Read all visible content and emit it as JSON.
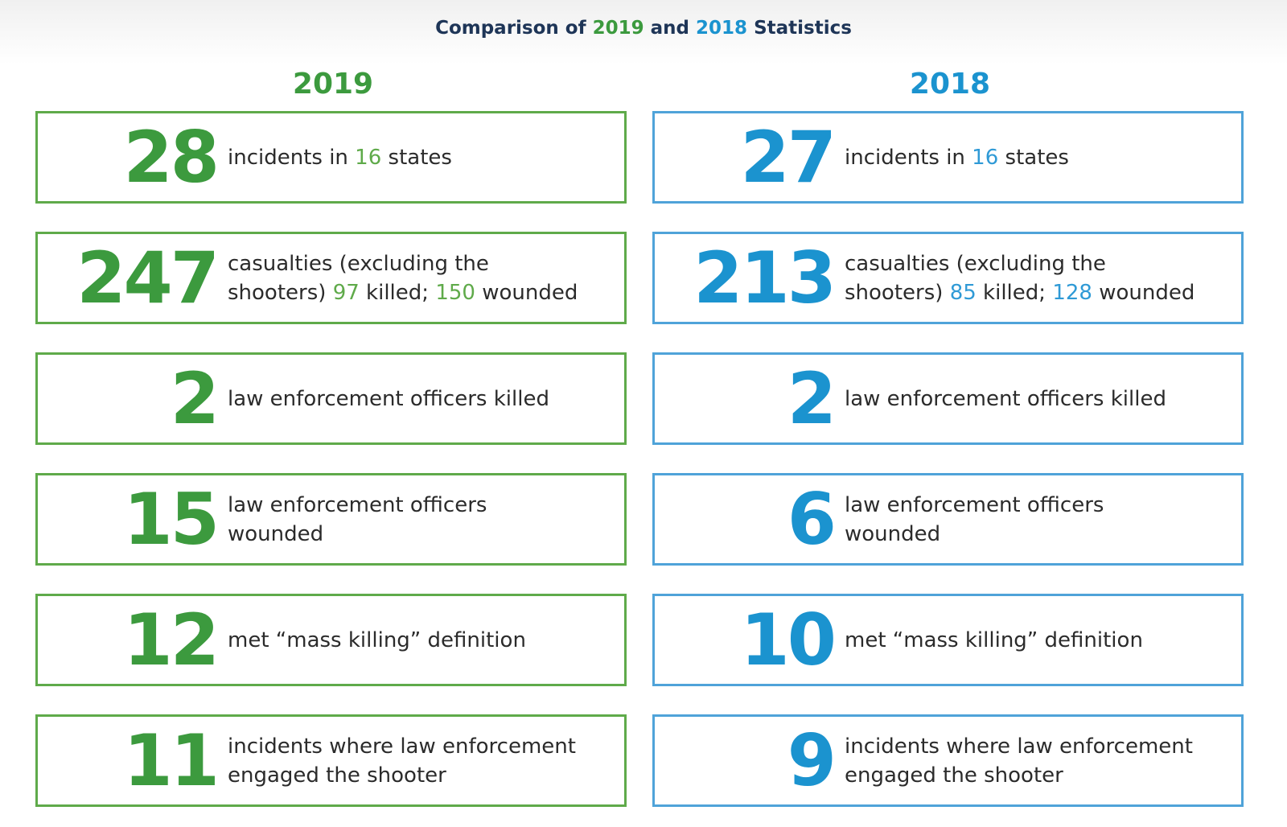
{
  "title": {
    "prefix": "Comparison of",
    "year_a": "2019",
    "mid": "and",
    "year_b": "2018",
    "suffix": "Statistics"
  },
  "columns": [
    {
      "year": "2019",
      "color": "#3c9a3e",
      "rows": [
        {
          "number": "28",
          "parts": [
            "incidents in ",
            "16",
            " states"
          ]
        },
        {
          "number": "247",
          "parts": [
            "casualties (excluding the",
            "shooters) ",
            "97",
            " killed; ",
            "150",
            " wounded"
          ]
        },
        {
          "number": "2",
          "parts": [
            "law enforcement officers killed"
          ]
        },
        {
          "number": "15",
          "parts": [
            "law enforcement officers",
            "wounded"
          ]
        },
        {
          "number": "12",
          "parts": [
            "met “mass killing” definition"
          ]
        },
        {
          "number": "11",
          "parts": [
            "incidents where law enforcement",
            "engaged the shooter"
          ]
        }
      ]
    },
    {
      "year": "2018",
      "color": "#1b93cf",
      "rows": [
        {
          "number": "27",
          "parts": [
            "incidents in ",
            "16",
            " states"
          ]
        },
        {
          "number": "213",
          "parts": [
            "casualties (excluding the",
            "shooters) ",
            "85",
            " killed; ",
            "128",
            " wounded"
          ]
        },
        {
          "number": "2",
          "parts": [
            "law enforcement officers killed"
          ]
        },
        {
          "number": "6",
          "parts": [
            "law enforcement officers",
            "wounded"
          ]
        },
        {
          "number": "10",
          "parts": [
            "met “mass killing” definition"
          ]
        },
        {
          "number": "9",
          "parts": [
            "incidents where law enforcement",
            "engaged the shooter"
          ]
        }
      ]
    }
  ]
}
